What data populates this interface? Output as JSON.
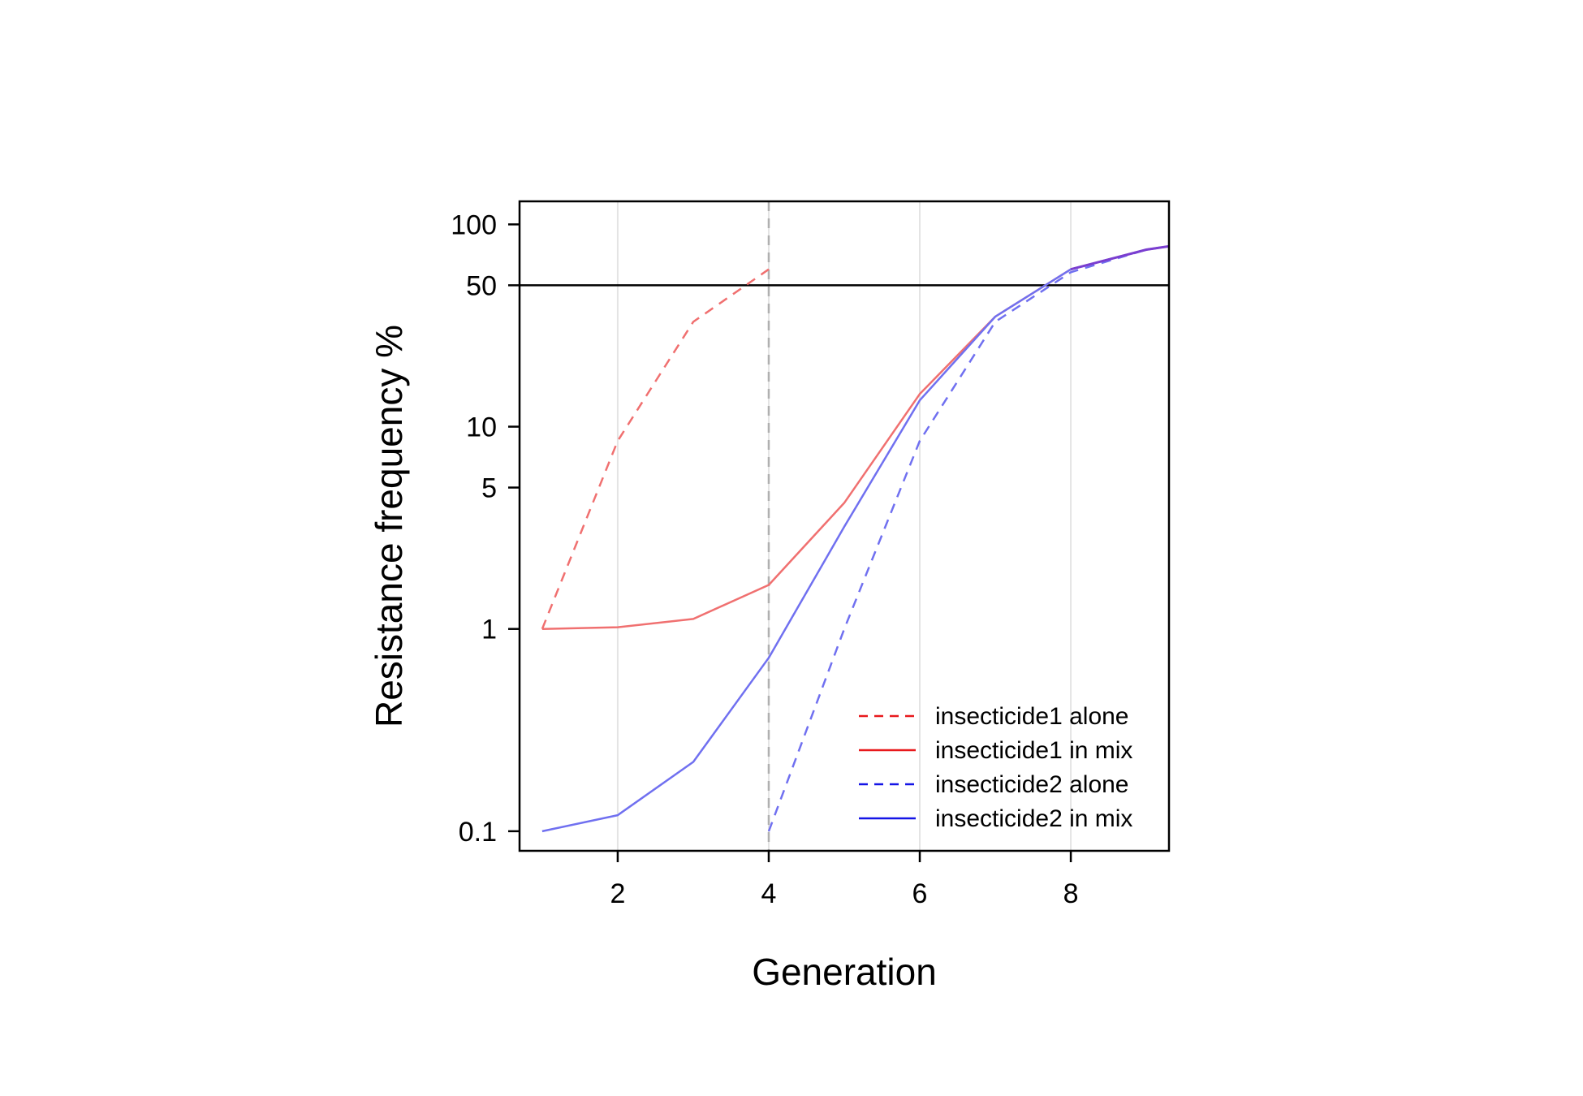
{
  "chart_data": {
    "type": "line",
    "xlabel": "Generation",
    "ylabel": "Resistance frequency %",
    "xlim": [
      0.7,
      9.3
    ],
    "ylim": [
      0.08,
      130
    ],
    "y_scale": "log",
    "x_ticks": [
      2,
      4,
      6,
      8
    ],
    "y_ticks": [
      0.1,
      1,
      5,
      10,
      50,
      100
    ],
    "y_tick_labels": [
      "0.1",
      "1",
      "5",
      "10",
      "50",
      "100"
    ],
    "grid": "vertical light lines at x ticks",
    "reference_lines": [
      {
        "orientation": "horizontal",
        "value": 50,
        "color": "#000000",
        "style": "solid"
      },
      {
        "orientation": "vertical",
        "value": 4,
        "color": "#b0b0b0",
        "style": "dashed"
      }
    ],
    "legend_position": "bottom-right",
    "series": [
      {
        "name": "insecticide1 alone",
        "color": "#f07070",
        "legend_color": "#e8191c",
        "dash": "dashed",
        "x": [
          1,
          2,
          3,
          4
        ],
        "y": [
          1.0,
          8.5,
          33,
          60
        ]
      },
      {
        "name": "insecticide1 in mix",
        "color": "#f07070",
        "legend_color": "#e8191c",
        "dash": "solid",
        "x": [
          1,
          2,
          3,
          4,
          5,
          6,
          7,
          8,
          9,
          9.3
        ],
        "y": [
          1.0,
          1.02,
          1.12,
          1.65,
          4.2,
          14.5,
          35,
          60,
          75,
          78
        ]
      },
      {
        "name": "insecticide2 alone",
        "color": "#7070f0",
        "legend_color": "#1414e6",
        "dash": "dashed",
        "x": [
          4,
          5,
          6,
          7,
          8,
          9,
          9.3
        ],
        "y": [
          0.1,
          1.0,
          8.5,
          33,
          58,
          75,
          78
        ]
      },
      {
        "name": "insecticide2 in mix",
        "color": "#7070f0",
        "legend_color": "#1414e6",
        "dash": "solid",
        "x": [
          1,
          2,
          3,
          4,
          5,
          6,
          7,
          8,
          9,
          9.3
        ],
        "y": [
          0.1,
          0.12,
          0.22,
          0.72,
          3.2,
          13.5,
          35,
          60,
          75,
          78
        ]
      }
    ],
    "overlap_color": "#7a3ed0"
  }
}
